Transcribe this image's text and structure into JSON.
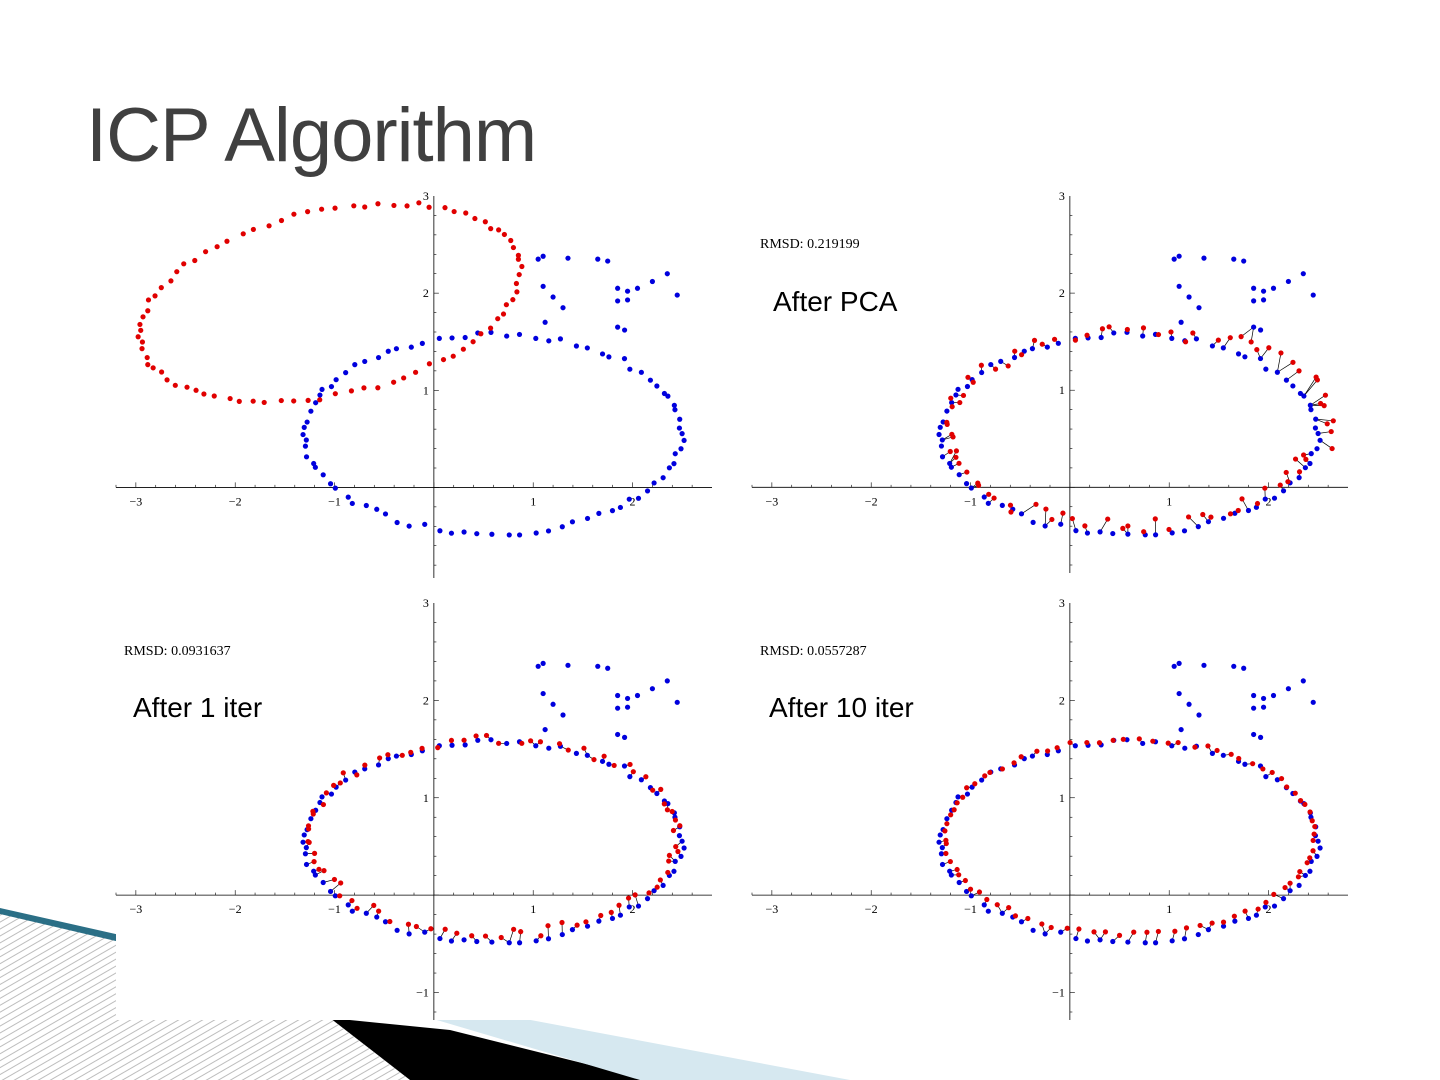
{
  "title": "ICP Algorithm",
  "colors": {
    "model": "#e00000",
    "data": "#0000dd",
    "link": "#000000",
    "title": "#404040"
  },
  "chart_data": [
    {
      "type": "scatter",
      "id": "initial",
      "rmsd": "",
      "annotation": "",
      "stage": 0,
      "xlim": [
        -3.2,
        2.8
      ],
      "ylim": [
        -0.85,
        3.0
      ],
      "xticks": [
        -3,
        -2,
        -1,
        1,
        2
      ],
      "yticks": [
        1,
        2,
        3
      ],
      "xticklabels": [
        "−3",
        "−2",
        "−1",
        "1",
        "2"
      ],
      "yticklabels": [
        "1",
        "2",
        "3"
      ],
      "series": [
        {
          "values": []
        },
        {
          "values": []
        }
      ]
    },
    {
      "type": "scatter",
      "id": "after-pca",
      "rmsd": "RMSD: 0.219199",
      "annotation": "After PCA",
      "stage": 1,
      "xlim": [
        -3.2,
        2.8
      ],
      "ylim": [
        -0.8,
        3.0
      ],
      "xticks": [
        -3,
        -2,
        -1,
        1,
        2
      ],
      "yticks": [
        1,
        2,
        3
      ],
      "xticklabels": [
        "−3",
        "−2",
        "−1",
        "1",
        "2"
      ],
      "yticklabels": [
        "1",
        "2",
        "3"
      ],
      "series": [
        {
          "values": []
        },
        {
          "values": []
        }
      ]
    },
    {
      "type": "scatter",
      "id": "after-1-iter",
      "rmsd": "RMSD: 0.0931637",
      "annotation": "After 1 iter",
      "stage": 2,
      "xlim": [
        -3.2,
        2.8
      ],
      "ylim": [
        -1.2,
        3.0
      ],
      "xticks": [
        -3,
        -2,
        -1,
        1,
        2
      ],
      "yticks": [
        -1,
        1,
        2,
        3
      ],
      "xticklabels": [
        "−3",
        "−2",
        "−1",
        "1",
        "2"
      ],
      "yticklabels": [
        "−1",
        "1",
        "2",
        "3"
      ],
      "series": [
        {
          "values": []
        },
        {
          "values": []
        }
      ]
    },
    {
      "type": "scatter",
      "id": "after-10-iter",
      "rmsd": "RMSD: 0.0557287",
      "annotation": "After 10 iter",
      "stage": 3,
      "xlim": [
        -3.2,
        2.8
      ],
      "ylim": [
        -1.2,
        3.0
      ],
      "xticks": [
        -3,
        -2,
        -1,
        1,
        2
      ],
      "yticks": [
        -1,
        1,
        2,
        3
      ],
      "xticklabels": [
        "−3",
        "−2",
        "−1",
        "1",
        "2"
      ],
      "yticklabels": [
        "−1",
        "1",
        "2",
        "3"
      ],
      "series": [
        {
          "values": []
        },
        {
          "values": []
        }
      ]
    }
  ]
}
